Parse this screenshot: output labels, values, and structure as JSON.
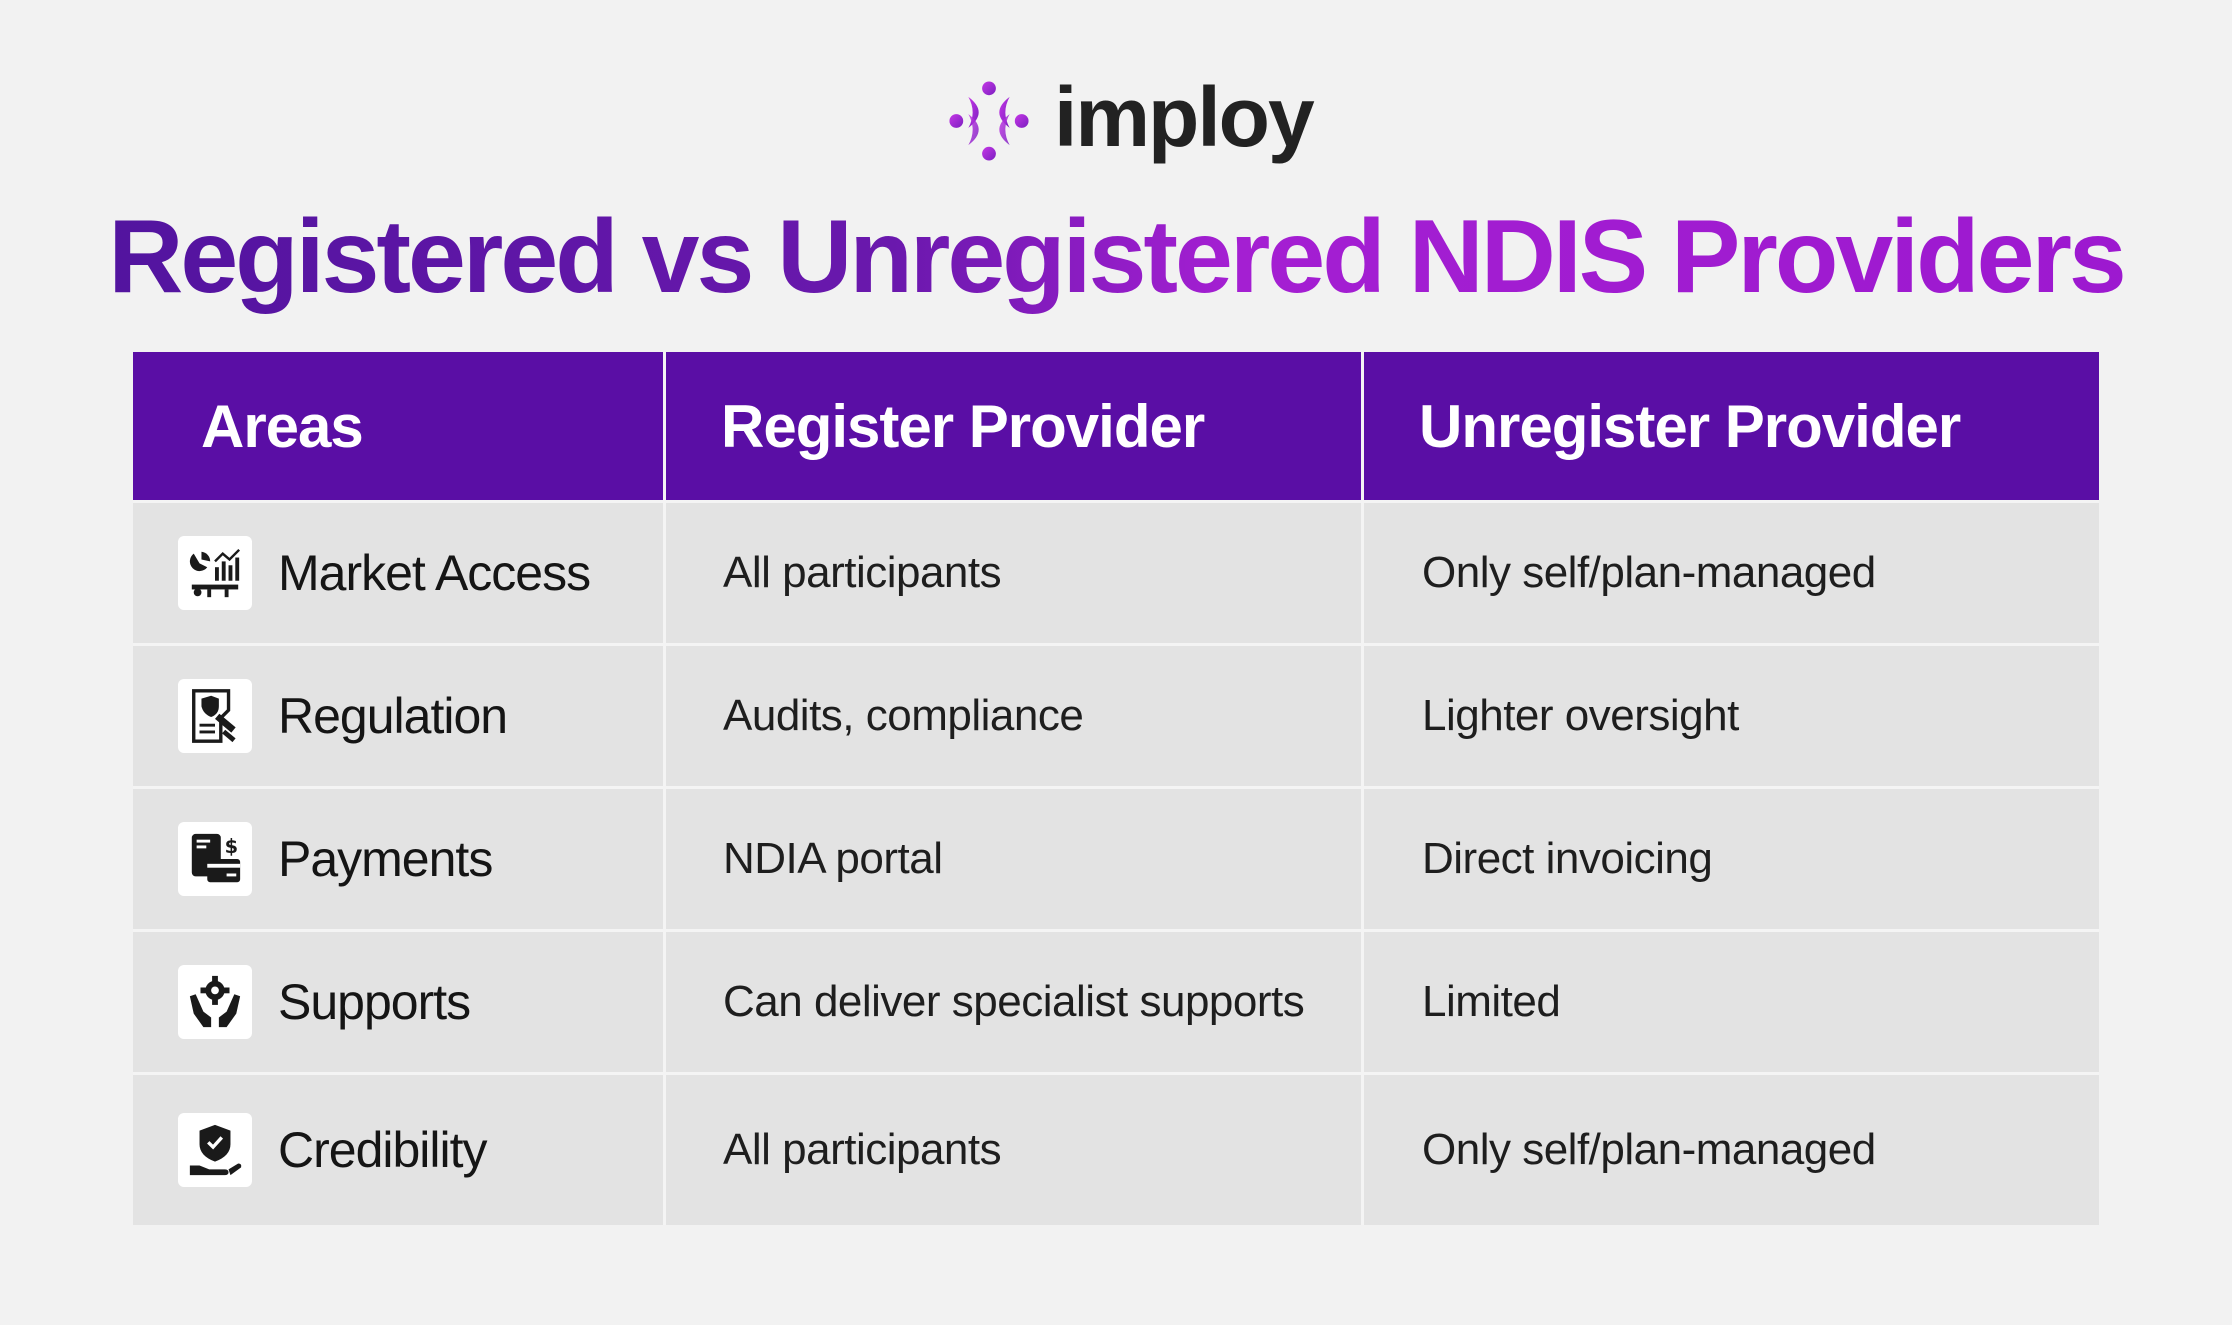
{
  "brand": {
    "name": "imploy",
    "accent": "#a126d4",
    "logo_icon": "imploy-logo-icon"
  },
  "title": "Registered vs Unregistered NDIS Providers",
  "colors": {
    "header_bg": "#5a0ea5",
    "title_start": "#4f139d",
    "title_end": "#a41fd2",
    "row_bg": "#e3e3e3"
  },
  "table": {
    "headers": [
      "Areas",
      "Register Provider",
      "Unregister Provider"
    ],
    "rows": [
      {
        "icon": "market-chart-icon",
        "area": "Market Access",
        "registered": "All participants",
        "unregistered": "Only self/plan-managed"
      },
      {
        "icon": "regulation-document-icon",
        "area": "Regulation",
        "registered": "Audits, compliance",
        "unregistered": "Lighter oversight"
      },
      {
        "icon": "payment-card-icon",
        "area": "Payments",
        "registered": "NDIA portal",
        "unregistered": "Direct invoicing"
      },
      {
        "icon": "support-hands-gear-icon",
        "area": "Supports",
        "registered": "Can deliver specialist supports",
        "unregistered": "Limited"
      },
      {
        "icon": "credibility-shield-hand-icon",
        "area": "Credibility",
        "registered": "All participants",
        "unregistered": "Only self/plan-managed"
      }
    ]
  }
}
